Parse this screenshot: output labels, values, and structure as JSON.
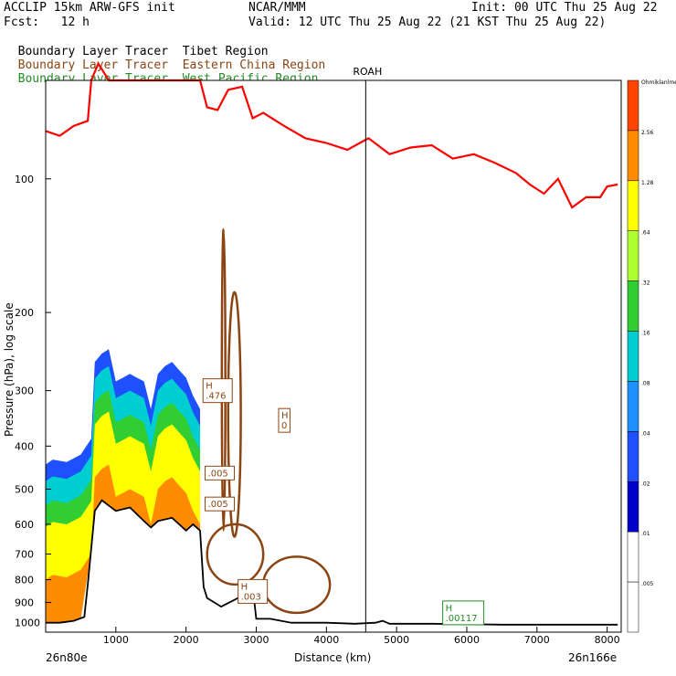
{
  "header": {
    "model": "ACCLIP 15km ARW-GFS init",
    "org": "NCAR/MMM",
    "init": "Init: 00 UTC Thu 25 Aug 22",
    "fcst": "Fcst:   12 h",
    "valid": "Valid: 12 UTC Thu 25 Aug 22 (21 KST Thu 25 Aug 22)",
    "tracer_prefix": "Boundary Layer Tracer",
    "tracers": [
      {
        "region": "Tibet Region",
        "color": "#000000"
      },
      {
        "region": "Eastern China Region",
        "color": "#8B4513"
      },
      {
        "region": "West Pacific Region",
        "color": "#228B22"
      }
    ]
  },
  "chart_data": {
    "type": "cross-section",
    "xlabel": "Distance (km)",
    "ylabel": "Pressure (hPa), log scale",
    "xlim": [
      0,
      8200
    ],
    "ylim": [
      1050,
      60
    ],
    "y_scale": "log",
    "x_ticks": [
      1000,
      2000,
      3000,
      4000,
      5000,
      6000,
      7000,
      8000
    ],
    "y_ticks": [
      100,
      200,
      300,
      400,
      500,
      600,
      700,
      800,
      900,
      1000
    ],
    "left_endpoint": "26n80e",
    "right_endpoint": "26n166e",
    "station_marker": {
      "label": "ROAH",
      "x": 4560
    },
    "tropopause_line": {
      "color": "#ff0000",
      "x": [
        0,
        200,
        400,
        600,
        650,
        750,
        900,
        1200,
        2200,
        2300,
        2450,
        2600,
        2800,
        2950,
        3100,
        3400,
        3700,
        4000,
        4300,
        4600,
        4900,
        5200,
        5500,
        5800,
        6100,
        6400,
        6700,
        6900,
        7100,
        7300,
        7500,
        7700,
        7900,
        8000,
        8150
      ],
      "y": [
        78,
        80,
        76,
        74,
        60,
        55,
        60,
        60,
        60,
        69,
        70,
        63,
        62,
        73,
        71,
        76,
        81,
        83,
        86,
        81,
        88,
        85,
        84,
        90,
        88,
        92,
        97,
        103,
        108,
        100,
        116,
        110,
        110,
        104,
        103
      ]
    },
    "terrain": {
      "x": [
        0,
        200,
        400,
        550,
        600,
        700,
        800,
        1000,
        1200,
        1400,
        1500,
        1600,
        1800,
        2000,
        2100,
        2200,
        2250,
        2300,
        2500,
        2800,
        2950,
        3000,
        3200,
        3500,
        4000,
        4400,
        4700,
        4800,
        4900,
        5500,
        6500,
        8150
      ],
      "y": [
        1000,
        1000,
        990,
        970,
        820,
        560,
        530,
        560,
        550,
        590,
        610,
        590,
        580,
        620,
        600,
        620,
        830,
        880,
        920,
        870,
        830,
        980,
        980,
        1000,
        1000,
        1005,
        1000,
        990,
        1005,
        1005,
        1010,
        1010
      ]
    },
    "tibet_tracer_fill": {
      "color": "#ff8c00",
      "x": [
        0,
        100,
        300,
        500,
        650,
        700,
        800,
        900,
        1000,
        1100,
        1200,
        1300,
        1400,
        1500,
        1600,
        1700,
        1800,
        1900,
        2000,
        2100,
        2200
      ],
      "top": [
        800,
        780,
        790,
        760,
        700,
        470,
        450,
        440,
        520,
        510,
        500,
        510,
        520,
        600,
        500,
        480,
        470,
        490,
        510,
        560,
        600
      ]
    },
    "contour_labels": [
      {
        "text": "H\n.476",
        "x": 2450,
        "p": 300,
        "color": "#8B4513"
      },
      {
        "text": "H\n0",
        "x": 3400,
        "p": 350,
        "color": "#8B4513"
      },
      {
        "text": ".005",
        "x": 2480,
        "p": 460,
        "color": "#8B4513"
      },
      {
        "text": ".005",
        "x": 2480,
        "p": 540,
        "color": "#8B4513"
      },
      {
        "text": "H\n.003",
        "x": 2950,
        "p": 850,
        "color": "#8B4513"
      },
      {
        "text": "H\n.00117",
        "x": 5950,
        "p": 950,
        "color": "#228B22"
      }
    ],
    "colorbar": {
      "levels": [
        ".005",
        ".01",
        ".02",
        ".04",
        ".08",
        ".16",
        ".32",
        ".64",
        "1.28",
        "2.56",
        "Ohmiklanlme"
      ],
      "colors": [
        "#ffffff",
        "#ffffff",
        "#0000cd",
        "#1e50ff",
        "#1e90ff",
        "#00ced1",
        "#32cd32",
        "#adff2f",
        "#ffff00",
        "#ff8c00",
        "#ff4500"
      ]
    }
  }
}
